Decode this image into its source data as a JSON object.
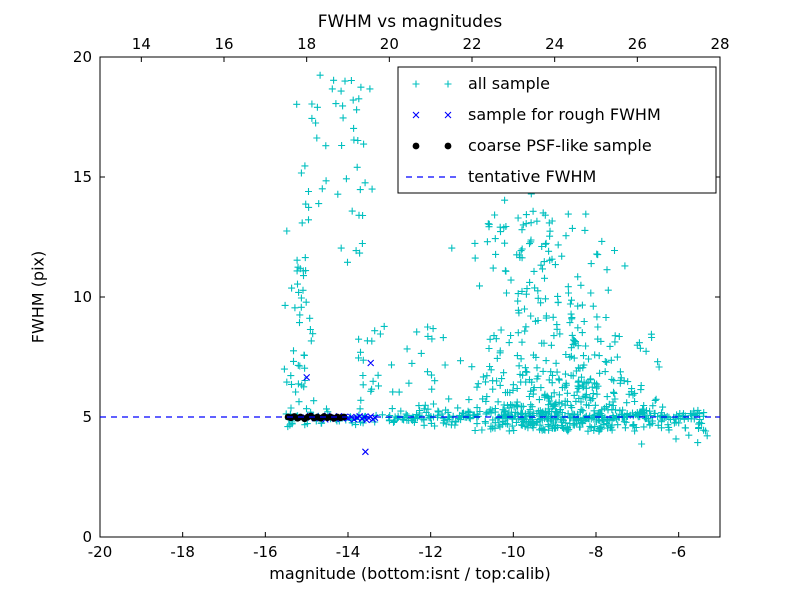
{
  "chart_data": {
    "type": "scatter",
    "title": "FWHM vs magnitudes",
    "xlabel": "magnitude (bottom:isnt / top:calib)",
    "ylabel": "FWHM (pix)",
    "xlim": [
      -20,
      -5
    ],
    "x2lim": [
      13,
      28
    ],
    "ylim": [
      0,
      20
    ],
    "xticks": [
      -20,
      -18,
      -16,
      -14,
      -12,
      -10,
      -8,
      -6
    ],
    "x2ticks": [
      14,
      16,
      18,
      20,
      22,
      24,
      26,
      28
    ],
    "yticks": [
      0,
      5,
      10,
      15,
      20
    ],
    "grid": false,
    "legend_position": "upper right",
    "series": [
      {
        "name": "all sample",
        "marker": "plus",
        "color": "#00bfbf",
        "seed": 7,
        "clusters": [
          {
            "count": 240,
            "x": {
              "type": "uniform",
              "a": -15.5,
              "b": -5.15
            },
            "y": {
              "type": "normal",
              "mean": 5.0,
              "sd": 0.16,
              "clip": [
                4.3,
                5.8
              ]
            }
          },
          {
            "count": 90,
            "x": {
              "type": "uniform",
              "a": -12.6,
              "b": -6.6
            },
            "y": {
              "type": "normal",
              "mean": 5.0,
              "sd": 0.25,
              "clip": [
                4.2,
                6.0
              ]
            }
          },
          {
            "count": 50,
            "x": {
              "type": "normal",
              "mean": -15.15,
              "sd": 0.18,
              "clip": [
                -15.6,
                -14.7
              ]
            },
            "y": {
              "type": "uniform",
              "a": 4.6,
              "b": 13.5
            }
          },
          {
            "count": 22,
            "x": {
              "type": "normal",
              "mean": -14.65,
              "sd": 0.35,
              "clip": [
                -15.4,
                -13.9
              ]
            },
            "y": {
              "type": "uniform",
              "a": 13.5,
              "b": 19.8
            }
          },
          {
            "count": 26,
            "x": {
              "type": "normal",
              "mean": -13.8,
              "sd": 0.18,
              "clip": [
                -14.2,
                -13.4
              ]
            },
            "y": {
              "type": "uniform",
              "a": 9.0,
              "b": 19.2
            }
          },
          {
            "count": 16,
            "x": {
              "type": "normal",
              "mean": -13.55,
              "sd": 0.2,
              "clip": [
                -14.0,
                -13.2
              ]
            },
            "y": {
              "type": "uniform",
              "a": 5.6,
              "b": 9.0
            }
          },
          {
            "count": 34,
            "x": {
              "type": "uniform",
              "a": -13.2,
              "b": -11.1
            },
            "y": {
              "type": "uniform",
              "a": 4.7,
              "b": 8.8
            }
          },
          {
            "count": 400,
            "x": {
              "type": "normal",
              "mean": -8.8,
              "sd": 1.05,
              "clip": [
                -11.6,
                -6.3
              ]
            },
            "y": {
              "type": "expdecay",
              "min": 4.4,
              "scale": 2.0,
              "max": 13.5
            }
          },
          {
            "count": 80,
            "x": {
              "type": "normal",
              "mean": -9.4,
              "sd": 0.85,
              "clip": [
                -11.4,
                -7.2
              ]
            },
            "y": {
              "type": "uniform",
              "a": 8.0,
              "b": 13.8
            }
          },
          {
            "count": 14,
            "x": {
              "type": "uniform",
              "a": -11.5,
              "b": -8.2
            },
            "y": {
              "type": "uniform",
              "a": 12.0,
              "b": 14.6
            }
          },
          {
            "count": 36,
            "x": {
              "type": "uniform",
              "a": -6.9,
              "b": -5.2
            },
            "y": {
              "type": "normal",
              "mean": 4.75,
              "sd": 0.4,
              "clip": [
                3.6,
                5.6
              ]
            }
          }
        ]
      },
      {
        "name": "sample for rough FWHM",
        "marker": "x",
        "color": "#0000ff",
        "points": [
          [
            -15.02,
            4.98
          ],
          [
            -14.92,
            5.04
          ],
          [
            -14.8,
            4.95
          ],
          [
            -14.66,
            5.02
          ],
          [
            -14.55,
            4.9
          ],
          [
            -14.5,
            5.05
          ],
          [
            -14.42,
            4.97
          ],
          [
            -14.35,
            5.0
          ],
          [
            -14.3,
            4.92
          ],
          [
            -14.22,
            5.03
          ],
          [
            -14.15,
            4.96
          ],
          [
            -14.08,
            5.01
          ],
          [
            -14.0,
            4.94
          ],
          [
            -13.92,
            5.0
          ],
          [
            -13.85,
            4.9
          ],
          [
            -13.78,
            4.97
          ],
          [
            -13.72,
            5.03
          ],
          [
            -13.66,
            4.93
          ],
          [
            -13.6,
            5.0
          ],
          [
            -13.55,
            4.88
          ],
          [
            -13.5,
            4.96
          ],
          [
            -13.45,
            5.02
          ],
          [
            -13.4,
            4.9
          ],
          [
            -13.35,
            4.97
          ],
          [
            -15.0,
            6.65
          ],
          [
            -13.45,
            7.25
          ],
          [
            -13.58,
            3.55
          ]
        ]
      },
      {
        "name": "coarse PSF-like sample",
        "marker": "circle",
        "color": "#000000",
        "points": [
          [
            -15.45,
            5.0
          ],
          [
            -15.38,
            4.97
          ],
          [
            -15.3,
            5.02
          ],
          [
            -15.22,
            4.95
          ],
          [
            -15.15,
            5.0
          ],
          [
            -15.05,
            4.93
          ],
          [
            -14.97,
            5.0
          ],
          [
            -14.9,
            5.04
          ],
          [
            -14.82,
            4.96
          ],
          [
            -14.74,
            5.0
          ],
          [
            -14.66,
            4.95
          ],
          [
            -14.58,
            5.02
          ],
          [
            -14.5,
            4.97
          ],
          [
            -14.42,
            5.0
          ],
          [
            -14.34,
            4.94
          ],
          [
            -14.26,
            5.0
          ],
          [
            -14.18,
            4.97
          ],
          [
            -14.1,
            5.0
          ]
        ]
      },
      {
        "name": "tentative FWHM",
        "type": "hline",
        "y": 5.0,
        "color": "#0000ff",
        "dash": [
          6,
          5
        ]
      }
    ]
  }
}
